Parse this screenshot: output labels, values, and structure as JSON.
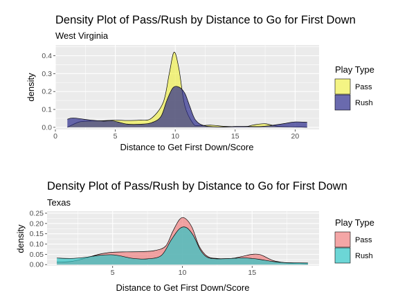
{
  "chart_data": [
    {
      "type": "area",
      "title": "Density Plot of Pass/Rush by Distance to Go for First Down",
      "subtitle": "West Virginia",
      "xlabel": "Distance to Get First Down/Score",
      "ylabel": "density",
      "xlim": [
        0,
        22
      ],
      "ylim": [
        -0.012,
        0.46
      ],
      "xticks": [
        0,
        5,
        10,
        15,
        20
      ],
      "yticks": [
        0.0,
        0.1,
        0.2,
        0.3,
        0.4
      ],
      "ytick_labels": [
        "0.0",
        "0.1",
        "0.2",
        "0.3",
        "0.4"
      ],
      "grid": true,
      "legend": {
        "title": "Play Type",
        "position": "right"
      },
      "series": [
        {
          "name": "Pass",
          "color": "#F0F050",
          "points": [
            [
              1,
              0.0
            ],
            [
              2,
              0.03
            ],
            [
              3,
              0.035
            ],
            [
              4,
              0.037
            ],
            [
              5,
              0.04
            ],
            [
              6,
              0.038
            ],
            [
              7,
              0.04
            ],
            [
              8,
              0.05
            ],
            [
              9,
              0.14
            ],
            [
              9.5,
              0.3
            ],
            [
              9.9,
              0.42
            ],
            [
              10.3,
              0.33
            ],
            [
              10.8,
              0.12
            ],
            [
              11.5,
              0.02
            ],
            [
              12,
              0.01
            ],
            [
              13,
              0.012
            ],
            [
              14,
              0.006
            ],
            [
              15,
              0.004
            ],
            [
              16,
              0.005
            ],
            [
              16.5,
              0.013
            ],
            [
              17.5,
              0.02
            ],
            [
              18.5,
              0.006
            ],
            [
              20,
              0.002
            ],
            [
              21,
              0.0
            ]
          ]
        },
        {
          "name": "Rush",
          "color": "#2B2B8C",
          "points": [
            [
              1,
              0.045
            ],
            [
              1.5,
              0.052
            ],
            [
              3,
              0.04
            ],
            [
              4,
              0.035
            ],
            [
              4.7,
              0.037
            ],
            [
              5.2,
              0.03
            ],
            [
              6,
              0.018
            ],
            [
              7,
              0.017
            ],
            [
              8,
              0.025
            ],
            [
              8.8,
              0.06
            ],
            [
              9.3,
              0.15
            ],
            [
              9.8,
              0.22
            ],
            [
              10.3,
              0.225
            ],
            [
              10.8,
              0.19
            ],
            [
              11.2,
              0.12
            ],
            [
              11.7,
              0.04
            ],
            [
              12.5,
              0.008
            ],
            [
              14,
              0.002
            ],
            [
              15,
              0.005
            ],
            [
              16,
              0.005
            ],
            [
              17,
              0.004
            ],
            [
              18,
              0.01
            ],
            [
              19,
              0.02
            ],
            [
              20,
              0.03
            ],
            [
              21,
              0.028
            ]
          ]
        }
      ]
    },
    {
      "type": "area",
      "title": "Density Plot of Pass/Rush by Distance to Go for First Down",
      "subtitle": "Texas",
      "xlabel": "Distance to Get First Down/Score",
      "ylabel": "density",
      "xlim": [
        0.3,
        19.8
      ],
      "ylim": [
        -0.006,
        0.26
      ],
      "xticks": [
        5,
        10,
        15
      ],
      "yticks": [
        0.0,
        0.05,
        0.1,
        0.15,
        0.2,
        0.25
      ],
      "ytick_labels": [
        "0.00",
        "0.05",
        "0.10",
        "0.15",
        "0.20",
        "0.25"
      ],
      "grid": true,
      "legend": {
        "title": "Play Type",
        "position": "right"
      },
      "series": [
        {
          "name": "Pass",
          "color": "#F08080",
          "points": [
            [
              1,
              0.012
            ],
            [
              2,
              0.015
            ],
            [
              3,
              0.03
            ],
            [
              4,
              0.05
            ],
            [
              5,
              0.06
            ],
            [
              6,
              0.062
            ],
            [
              7,
              0.063
            ],
            [
              8,
              0.068
            ],
            [
              8.8,
              0.09
            ],
            [
              9.3,
              0.16
            ],
            [
              9.8,
              0.22
            ],
            [
              10.2,
              0.225
            ],
            [
              10.7,
              0.18
            ],
            [
              11.2,
              0.09
            ],
            [
              11.8,
              0.04
            ],
            [
              12.5,
              0.03
            ],
            [
              13.5,
              0.03
            ],
            [
              14.3,
              0.04
            ],
            [
              15,
              0.05
            ],
            [
              15.6,
              0.048
            ],
            [
              16.5,
              0.02
            ],
            [
              17.5,
              0.008
            ],
            [
              18.5,
              0.005
            ],
            [
              19,
              0.003
            ]
          ]
        },
        {
          "name": "Rush",
          "color": "#2EC4C4",
          "points": [
            [
              1,
              0.032
            ],
            [
              2,
              0.03
            ],
            [
              3,
              0.035
            ],
            [
              4,
              0.045
            ],
            [
              4.9,
              0.048
            ],
            [
              5.5,
              0.043
            ],
            [
              6.5,
              0.03
            ],
            [
              7.5,
              0.028
            ],
            [
              8.5,
              0.045
            ],
            [
              9.2,
              0.12
            ],
            [
              9.8,
              0.175
            ],
            [
              10.3,
              0.18
            ],
            [
              10.8,
              0.14
            ],
            [
              11.3,
              0.07
            ],
            [
              11.8,
              0.035
            ],
            [
              12.5,
              0.028
            ],
            [
              13.5,
              0.03
            ],
            [
              14.3,
              0.033
            ],
            [
              15,
              0.03
            ],
            [
              15.5,
              0.026
            ],
            [
              16.5,
              0.015
            ],
            [
              17.3,
              0.01
            ],
            [
              18,
              0.009
            ],
            [
              19,
              0.008
            ]
          ]
        }
      ]
    }
  ]
}
